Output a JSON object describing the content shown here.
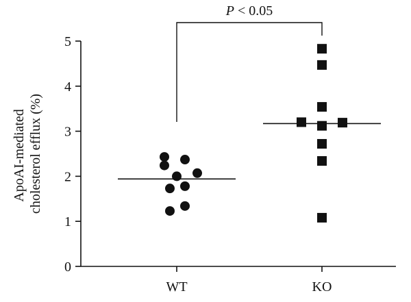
{
  "chart_data": {
    "type": "scatter",
    "ylabel_line1": "ApoAI-mediated",
    "ylabel_line2": "cholesterol efflux (%)",
    "ylim": [
      0,
      5
    ],
    "yticks": [
      "0",
      "1",
      "2",
      "3",
      "4",
      "5"
    ],
    "categories": [
      "WT",
      "KO"
    ],
    "grid": false,
    "significance": {
      "p_italic": "P",
      "text": " < 0.05"
    },
    "series": [
      {
        "category": "WT",
        "marker": "circle",
        "mean": 1.94,
        "points": [
          {
            "offset": -0.18,
            "y": 2.43
          },
          {
            "offset": -0.18,
            "y": 2.24
          },
          {
            "offset": 0.12,
            "y": 2.37
          },
          {
            "offset": 0.0,
            "y": 2.0
          },
          {
            "offset": 0.3,
            "y": 2.07
          },
          {
            "offset": -0.1,
            "y": 1.73
          },
          {
            "offset": 0.12,
            "y": 1.78
          },
          {
            "offset": 0.12,
            "y": 1.34
          },
          {
            "offset": -0.1,
            "y": 1.23
          }
        ]
      },
      {
        "category": "KO",
        "marker": "square",
        "mean": 3.17,
        "points": [
          {
            "offset": 0.0,
            "y": 4.83
          },
          {
            "offset": 0.0,
            "y": 4.47
          },
          {
            "offset": 0.0,
            "y": 3.54
          },
          {
            "offset": -0.3,
            "y": 3.2
          },
          {
            "offset": 0.0,
            "y": 3.12
          },
          {
            "offset": 0.3,
            "y": 3.19
          },
          {
            "offset": 0.0,
            "y": 2.72
          },
          {
            "offset": 0.0,
            "y": 2.34
          },
          {
            "offset": 0.0,
            "y": 1.08
          }
        ]
      }
    ]
  }
}
